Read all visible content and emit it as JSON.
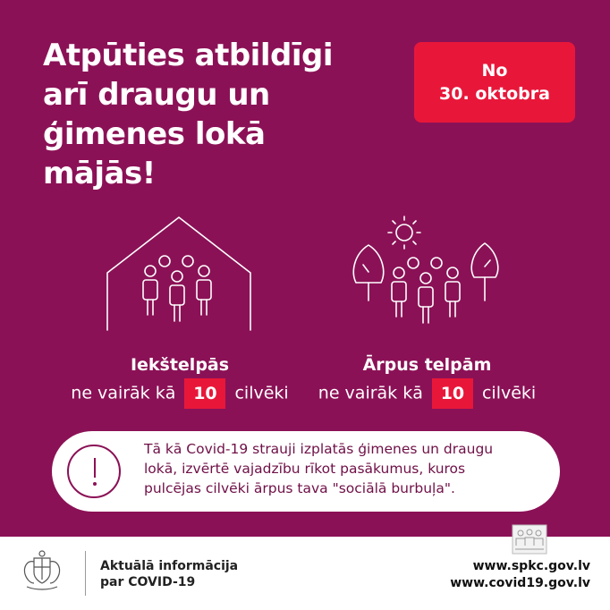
{
  "headline": {
    "lines": [
      "Atpūties atbildīgi",
      "arī draugu un",
      "ģimenes lokā",
      "mājās!"
    ]
  },
  "date_badge": {
    "line1": "No",
    "line2": "30. oktobra"
  },
  "indoor": {
    "title": "Iekštelpās",
    "prefix": "ne vairāk kā",
    "number": "10",
    "suffix": "cilvēki"
  },
  "outdoor": {
    "title": "Ārpus telpām",
    "prefix": "ne vairāk kā",
    "number": "10",
    "suffix": "cilvēki"
  },
  "notice": {
    "lines": [
      "Tā kā Covid-19 strauji izplatās ģimenes un draugu",
      "lokā, izvērtē vajadzību rīkot pasākumus, kuros",
      "pulcējas cilvēki ārpus tava \"sociālā burbuļa\"."
    ]
  },
  "footer": {
    "info_line1": "Aktuālā informācija",
    "info_line2": "par COVID-19",
    "url1": "www.spkc.gov.lv",
    "url2": "www.covid19.gov.lv"
  },
  "colors": {
    "background": "#8b1156",
    "accent": "#e8173a",
    "text": "#ffffff"
  }
}
